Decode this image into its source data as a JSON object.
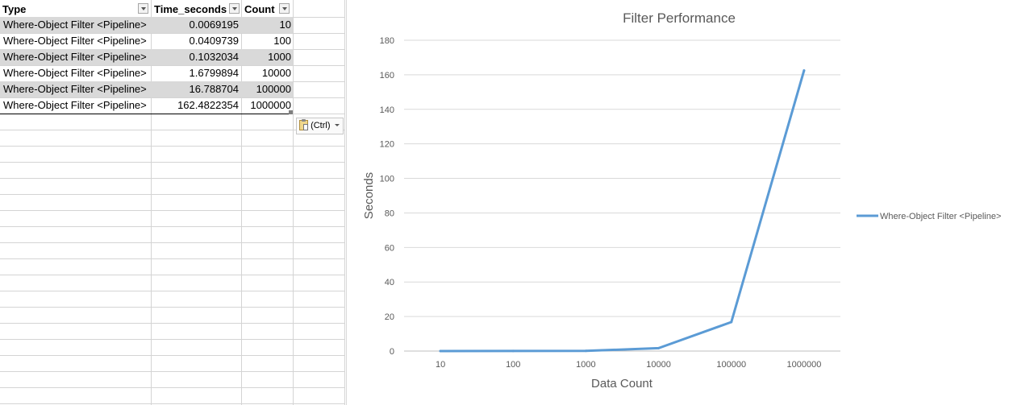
{
  "sheet": {
    "headers": [
      {
        "label": "Type"
      },
      {
        "label": "Time_seconds"
      },
      {
        "label": "Count"
      }
    ],
    "rows": [
      {
        "type": "Where-Object Filter <Pipeline>",
        "time": "0.0069195",
        "count": "10"
      },
      {
        "type": "Where-Object Filter <Pipeline>",
        "time": "0.0409739",
        "count": "100"
      },
      {
        "type": "Where-Object Filter <Pipeline>",
        "time": "0.1032034",
        "count": "1000"
      },
      {
        "type": "Where-Object Filter <Pipeline>",
        "time": "1.6799894",
        "count": "10000"
      },
      {
        "type": "Where-Object Filter <Pipeline>",
        "time": "16.788704",
        "count": "100000"
      },
      {
        "type": "Where-Object Filter <Pipeline>",
        "time": "162.4822354",
        "count": "1000000"
      }
    ],
    "paste_options_label": "(Ctrl)"
  },
  "chart_data": {
    "type": "line",
    "title": "Filter Performance",
    "xlabel": "Data Count",
    "ylabel": "Seconds",
    "categories": [
      "10",
      "100",
      "1000",
      "10000",
      "100000",
      "1000000"
    ],
    "series": [
      {
        "name": "Where-Object Filter <Pipeline>",
        "values": [
          0.0069195,
          0.0409739,
          0.1032034,
          1.6799894,
          16.788704,
          162.4822354
        ],
        "color": "#5b9bd5"
      }
    ],
    "ylim": [
      0,
      180
    ],
    "yticks": [
      0,
      20,
      40,
      60,
      80,
      100,
      120,
      140,
      160,
      180
    ],
    "grid": true,
    "legend": "right"
  }
}
